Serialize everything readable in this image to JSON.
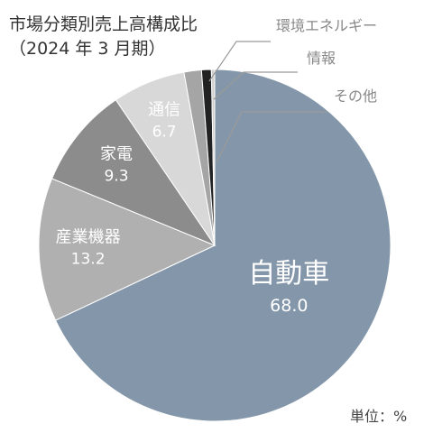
{
  "title_line1": "市場分類別売上高構成比",
  "title_line2": "（2024 年 3 月期）",
  "unit_label": "単位：%",
  "chart_data": {
    "type": "pie",
    "unit": "%",
    "title": "市場分類別売上高構成比（2024 年 3 月期）",
    "slices": [
      {
        "name": "自動車",
        "value": 68.0,
        "value_label": "68.0",
        "color": "#8497aa"
      },
      {
        "name": "産業機器",
        "value": 13.2,
        "value_label": "13.2",
        "color": "#b0b0b0"
      },
      {
        "name": "家電",
        "value": 9.3,
        "value_label": "9.3",
        "color": "#8c8c8c"
      },
      {
        "name": "通信",
        "value": 6.7,
        "value_label": "6.7",
        "color": "#d8d8d8"
      },
      {
        "name": "環境エネルギー",
        "value": 1.6,
        "value_label": "",
        "color": "#a5a5a5"
      },
      {
        "name": "情報",
        "value": 0.9,
        "value_label": "",
        "color": "#222222"
      },
      {
        "name": "その他",
        "value": 0.3,
        "value_label": "",
        "color": "#d0d0d0"
      }
    ]
  }
}
